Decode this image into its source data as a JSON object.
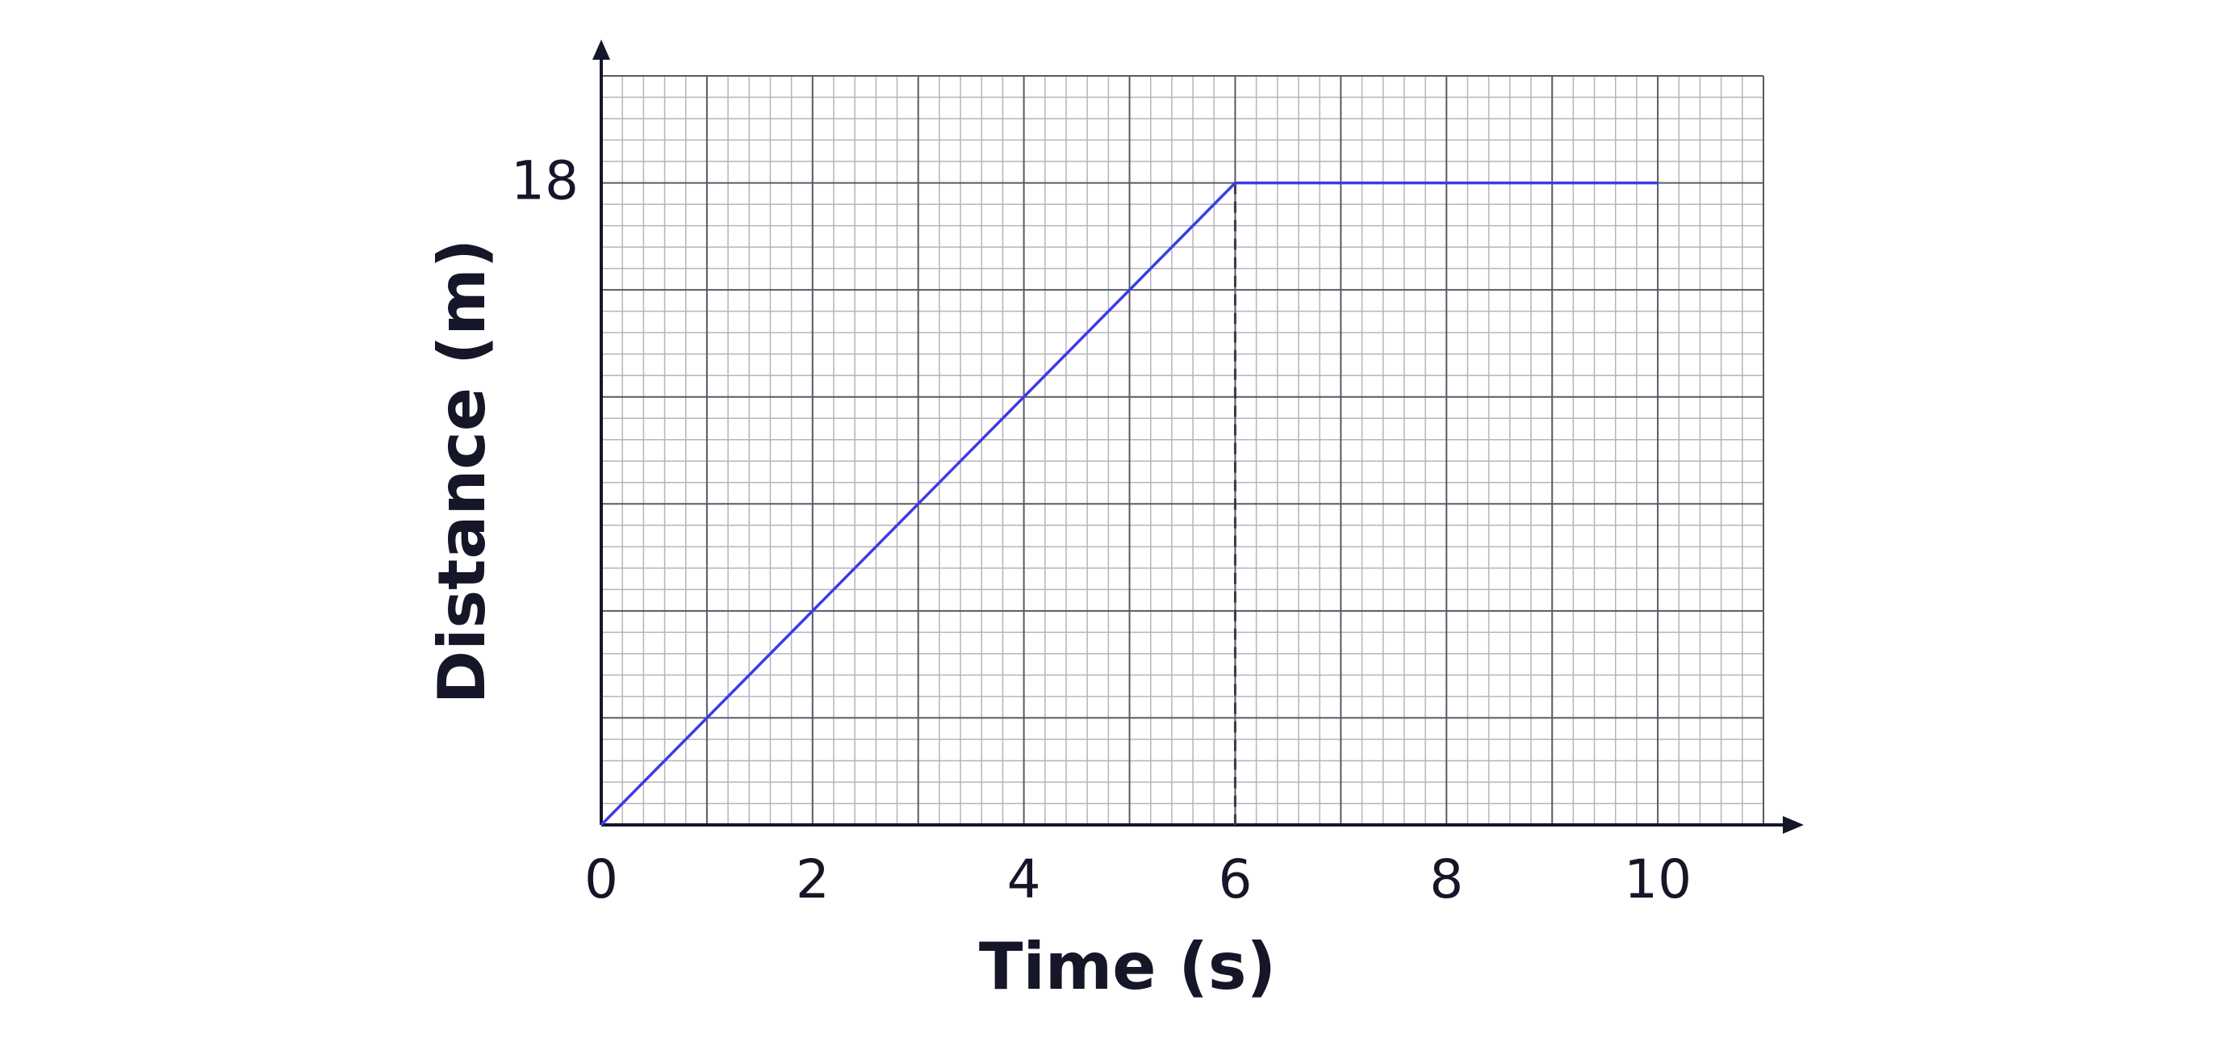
{
  "chart_data": {
    "type": "line",
    "x_label": "Time (s)",
    "y_label": "Distance (m)",
    "x": [
      0,
      6,
      10
    ],
    "series": [
      {
        "color": "#3c3ce6",
        "values": [
          0,
          18,
          18
        ]
      }
    ],
    "xlim": [
      0,
      11
    ],
    "ylim": [
      0,
      21
    ],
    "xticks": [
      0,
      2,
      4,
      6,
      8,
      10
    ],
    "yticks": [
      18
    ],
    "grid": true,
    "xgrid": [
      0,
      1,
      2,
      3,
      4,
      5,
      6,
      7,
      8,
      9,
      10,
      11
    ],
    "ygrid": [
      0,
      3,
      6,
      9,
      12,
      15,
      18,
      21
    ],
    "minor_divisions": 5,
    "drop_line": {
      "x": 6,
      "y": 18
    }
  }
}
